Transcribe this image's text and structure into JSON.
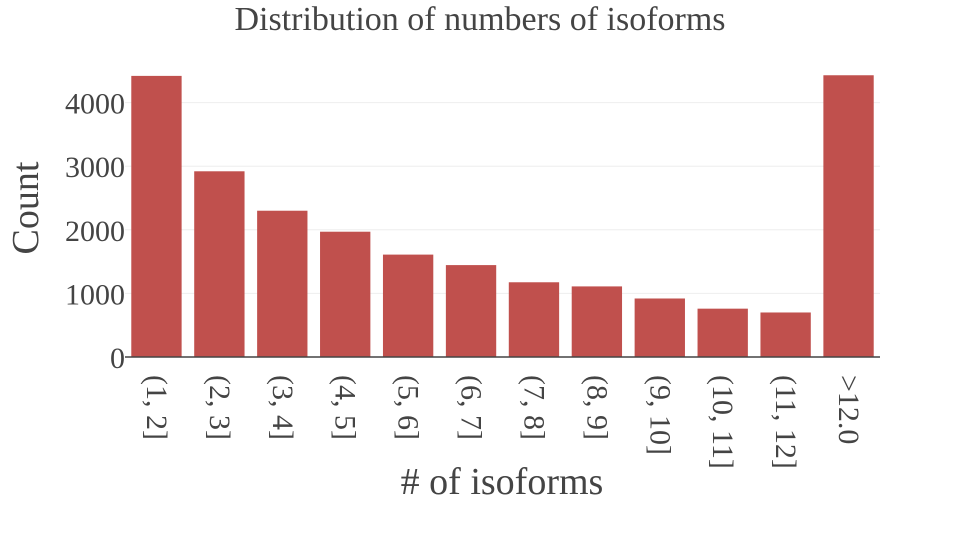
{
  "chart_data": {
    "type": "bar",
    "title": "Distribution of numbers of isoforms",
    "xlabel": "# of isoforms",
    "ylabel": "Count",
    "categories": [
      "(1, 2]",
      "(2, 3]",
      "(3, 4]",
      "(4, 5]",
      "(5, 6]",
      "(6, 7]",
      "(7, 8]",
      "(8, 9]",
      "(9, 10]",
      "(10, 11]",
      "(11, 12]",
      ">12.0"
    ],
    "values": [
      4420,
      2920,
      2300,
      1970,
      1610,
      1445,
      1175,
      1110,
      920,
      760,
      700,
      4430
    ],
    "ylim": [
      0,
      4500
    ],
    "yticks": [
      0,
      1000,
      2000,
      3000,
      4000
    ],
    "grid": true,
    "legend": "none",
    "bar_color": "#c0504d"
  }
}
